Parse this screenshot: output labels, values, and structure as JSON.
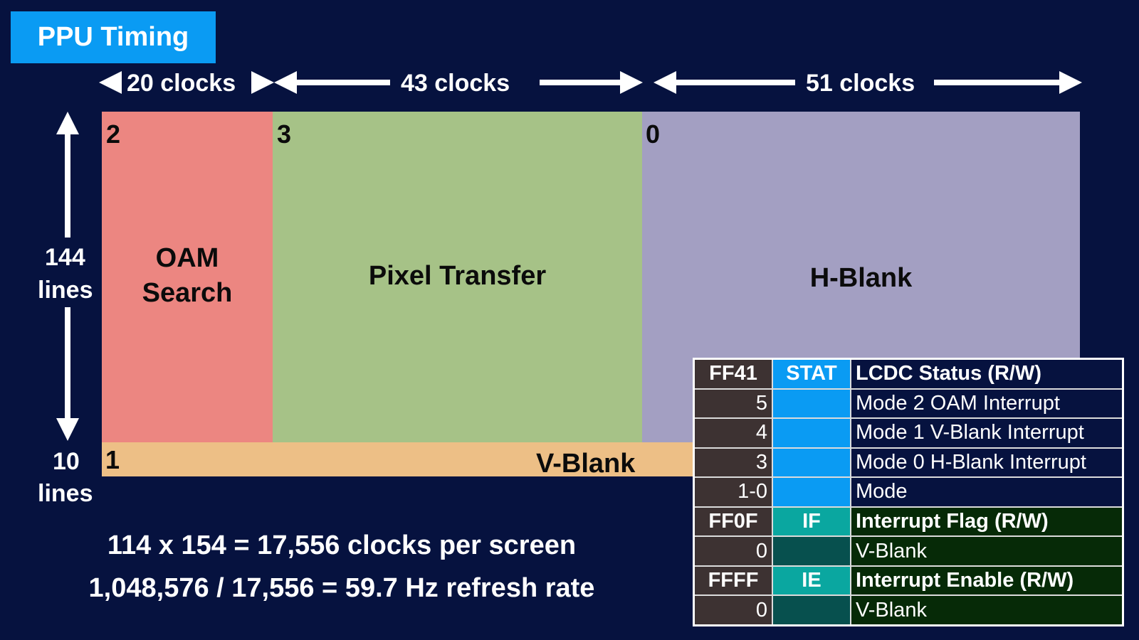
{
  "title": "PPU Timing",
  "timing": {
    "oam_clocks": "20 clocks",
    "pixel_clocks": "43 clocks",
    "hblank_clocks": "51 clocks",
    "visible_lines_count": "144",
    "visible_lines_unit": "lines",
    "vblank_lines_count": "10",
    "vblank_lines_unit": "lines"
  },
  "modes": {
    "oam": {
      "number": "2",
      "name_line1": "OAM",
      "name_line2": "Search",
      "color": "#ec8681"
    },
    "pixel": {
      "number": "3",
      "name": "Pixel Transfer",
      "color": "#a6c287"
    },
    "hblank": {
      "number": "0",
      "name": "H-Blank",
      "color": "#a39fc2"
    },
    "vblank": {
      "number": "1",
      "name": "V-Blank",
      "color": "#edbf86"
    }
  },
  "formulas": {
    "line1": "114 x 154 = 17,556 clocks per screen",
    "line2": "1,048,576 / 17,556 = 59.7 Hz refresh rate"
  },
  "registers": {
    "stat": {
      "address": "FF41",
      "name": "STAT",
      "description": "LCDC Status (R/W)",
      "bits": [
        {
          "bit": "5",
          "description": "Mode 2 OAM Interrupt"
        },
        {
          "bit": "4",
          "description": "Mode 1 V-Blank Interrupt"
        },
        {
          "bit": "3",
          "description": "Mode 0 H-Blank Interrupt"
        },
        {
          "bit": "1-0",
          "description": "Mode"
        }
      ]
    },
    "if": {
      "address": "FF0F",
      "name": "IF",
      "description": "Interrupt Flag (R/W)",
      "bits": [
        {
          "bit": "0",
          "description": "V-Blank"
        }
      ]
    },
    "ie": {
      "address": "FFFF",
      "name": "IE",
      "description": "Interrupt Enable (R/W)",
      "bits": [
        {
          "bit": "0",
          "description": "V-Blank"
        }
      ]
    }
  },
  "colors": {
    "background": "#06123f",
    "accent_blue": "#0a9bf3",
    "accent_teal": "#0aa7a0"
  }
}
